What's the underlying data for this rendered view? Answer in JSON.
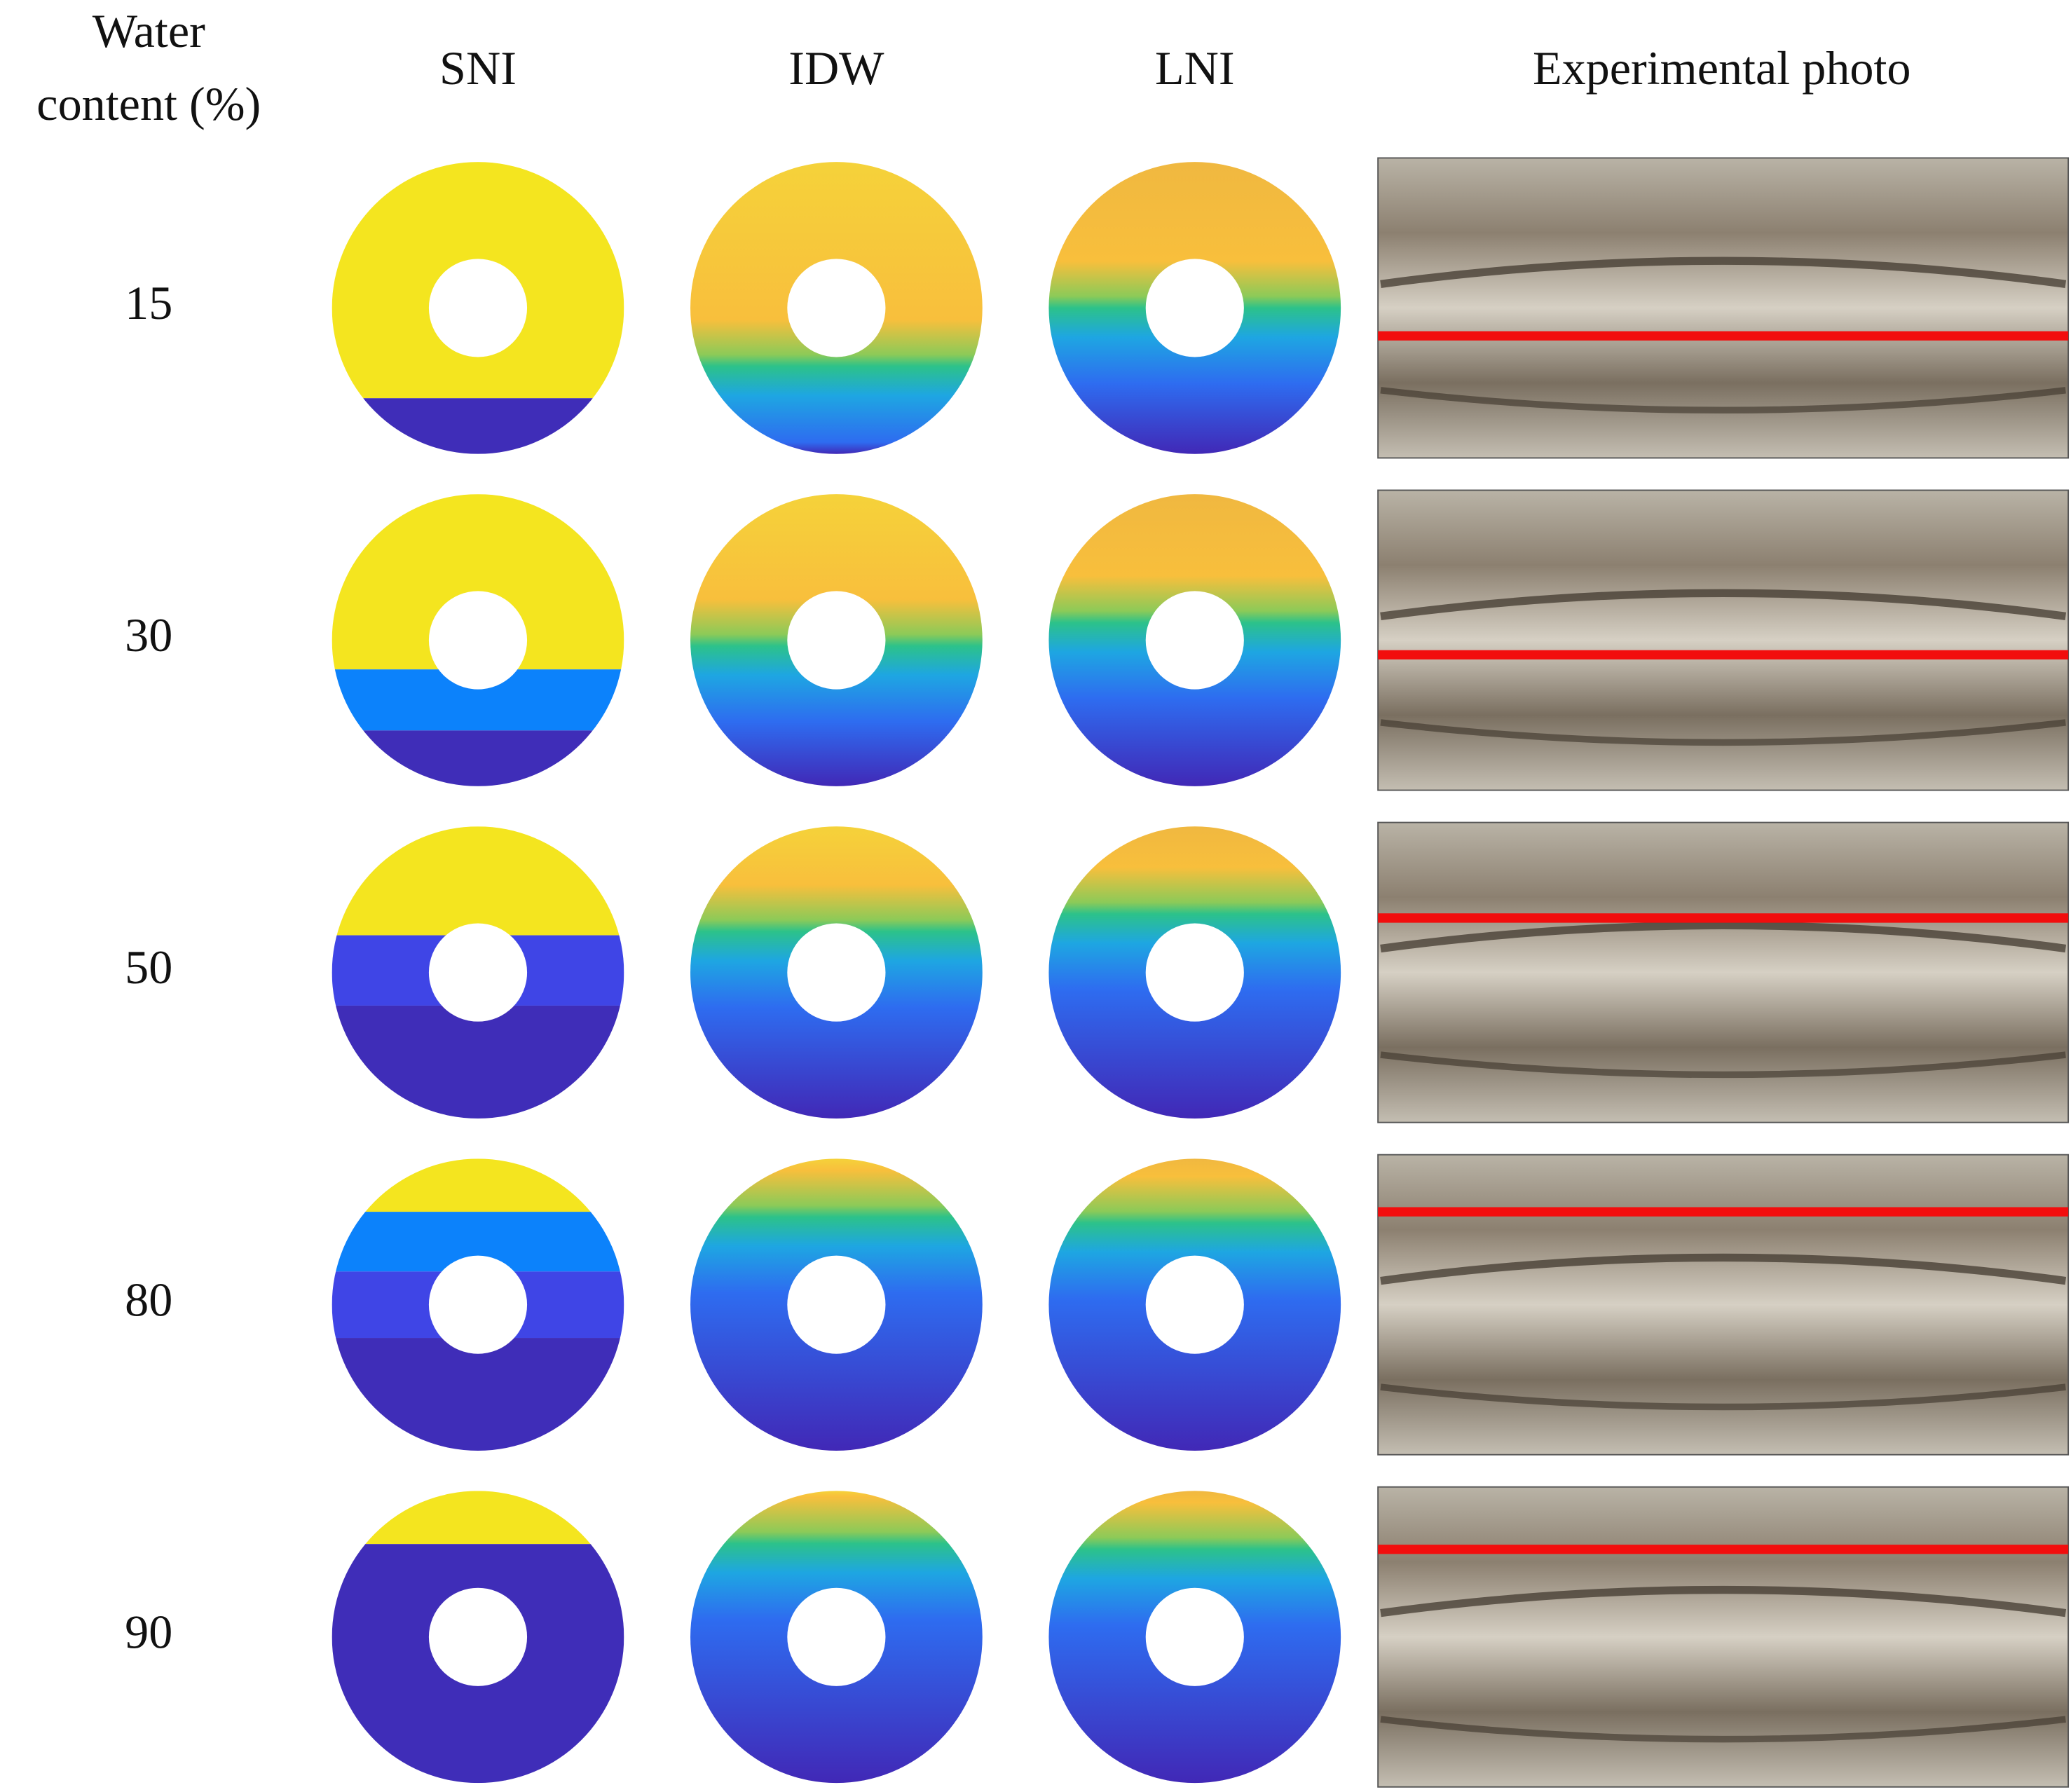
{
  "header": {
    "row_title_lines": [
      "Water",
      "content (%)"
    ],
    "columns": [
      "SNI",
      "IDW",
      "LNI",
      "Experimental photo"
    ]
  },
  "rows": [
    15,
    30,
    50,
    80,
    90
  ]
}
